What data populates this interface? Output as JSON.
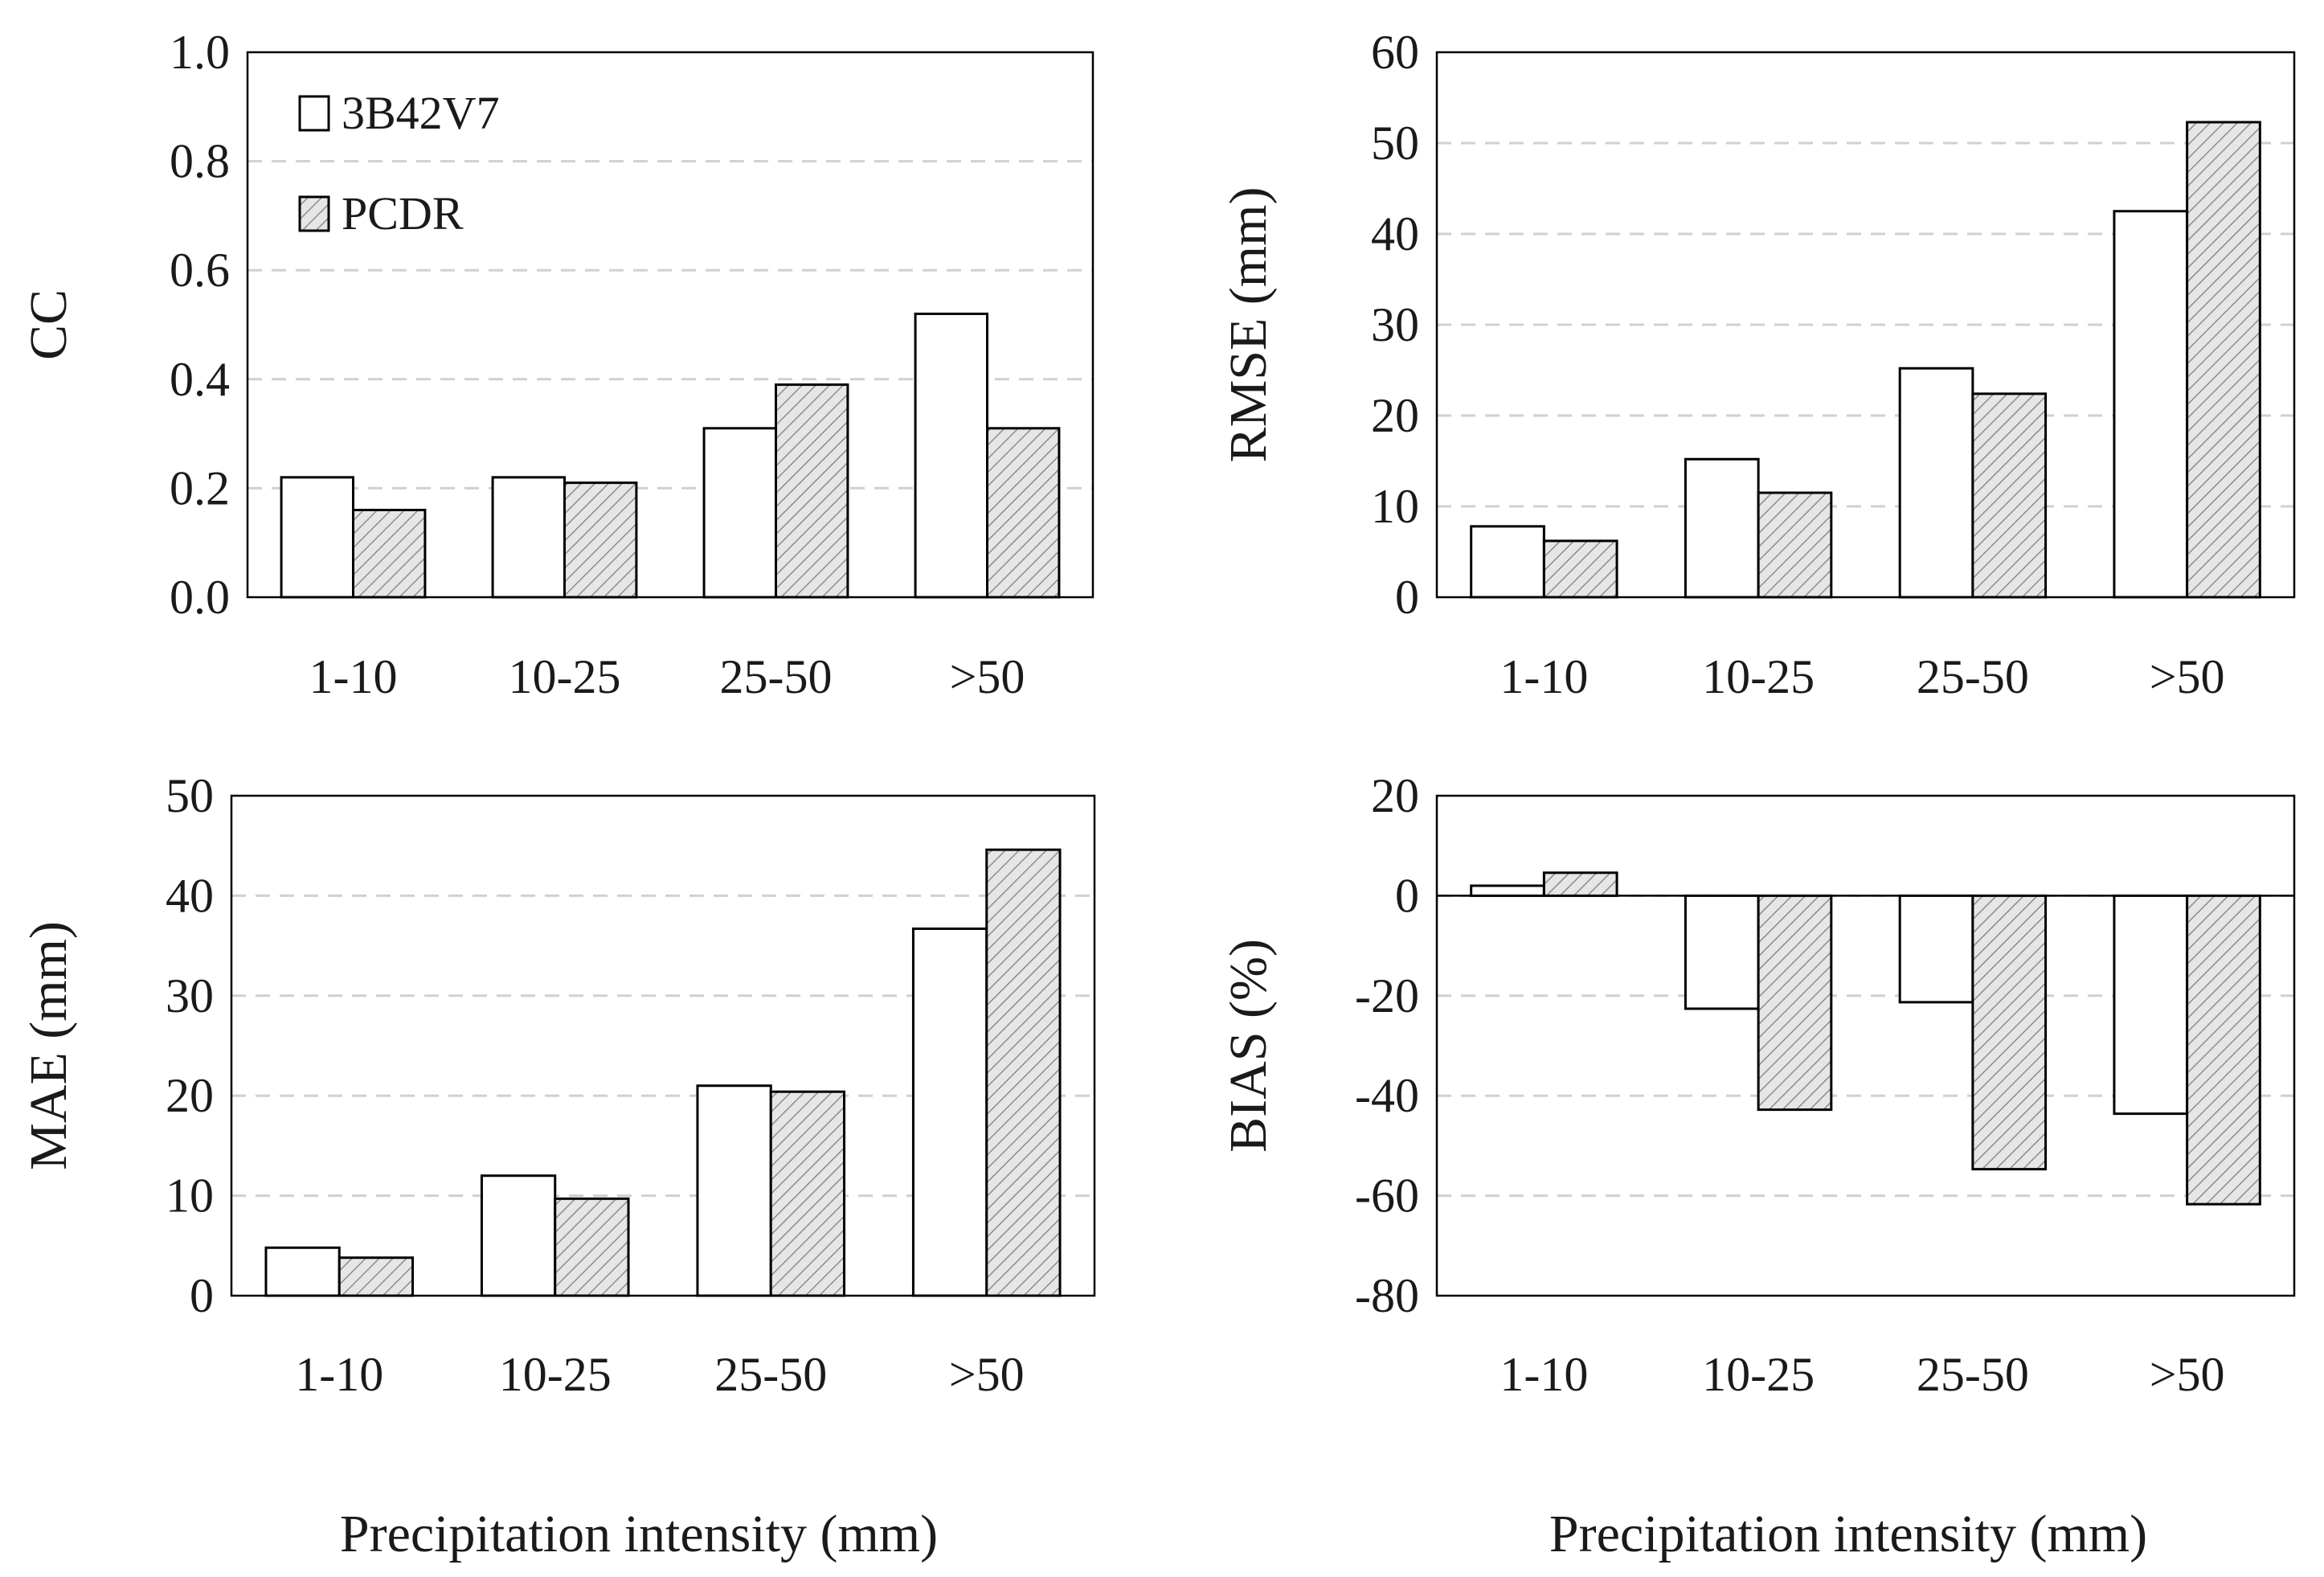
{
  "colors": {
    "bar_a_fill": "#ffffff",
    "bar_b_fill": "#e6e6e6",
    "hatch": "#8c8c8c",
    "axis": "#000000",
    "grid": "#d0d0d0"
  },
  "legend": {
    "series_a": "3B42V7",
    "series_b": "PCDR"
  },
  "x_titles": {
    "left": "Precipitation intensity (mm)",
    "right": "Precipitation intensity (mm)"
  },
  "chart_data": [
    {
      "type": "bar",
      "ylabel": "CC",
      "categories": [
        "1-10",
        "10-25",
        "25-50",
        ">50"
      ],
      "series": [
        {
          "name": "3B42V7",
          "values": [
            0.22,
            0.22,
            0.31,
            0.52
          ]
        },
        {
          "name": "PCDR",
          "values": [
            0.16,
            0.21,
            0.39,
            0.31
          ]
        }
      ],
      "ylim": [
        0,
        1.0
      ],
      "yticks": [
        "0.0",
        "0.2",
        "0.4",
        "0.6",
        "0.8",
        "1.0"
      ],
      "grid": true
    },
    {
      "type": "bar",
      "ylabel": "RMSE (mm)",
      "categories": [
        "1-10",
        "10-25",
        "25-50",
        ">50"
      ],
      "series": [
        {
          "name": "3B42V7",
          "values": [
            7.8,
            15.2,
            25.2,
            42.5
          ]
        },
        {
          "name": "PCDR",
          "values": [
            6.2,
            11.5,
            22.4,
            52.3
          ]
        }
      ],
      "ylim": [
        0,
        60
      ],
      "yticks": [
        "0",
        "10",
        "20",
        "30",
        "40",
        "50",
        "60"
      ],
      "grid": true
    },
    {
      "type": "bar",
      "ylabel": "MAE (mm)",
      "categories": [
        "1-10",
        "10-25",
        "25-50",
        ">50"
      ],
      "series": [
        {
          "name": "3B42V7",
          "values": [
            4.8,
            12.0,
            21.0,
            36.7
          ]
        },
        {
          "name": "PCDR",
          "values": [
            3.8,
            9.7,
            20.4,
            44.6
          ]
        }
      ],
      "ylim": [
        0,
        50
      ],
      "yticks": [
        "0",
        "10",
        "20",
        "30",
        "40",
        "50"
      ],
      "grid": true
    },
    {
      "type": "bar",
      "ylabel": "BIAS (%)",
      "categories": [
        "1-10",
        "10-25",
        "25-50",
        ">50"
      ],
      "series": [
        {
          "name": "3B42V7",
          "values": [
            2,
            -22.6,
            -21.3,
            -43.6
          ]
        },
        {
          "name": "PCDR",
          "values": [
            4.6,
            -42.8,
            -54.7,
            -61.7
          ]
        }
      ],
      "ylim": [
        -80,
        20
      ],
      "yticks": [
        "-80",
        "-60",
        "-40",
        "-20",
        "0",
        "20"
      ],
      "grid": true
    }
  ]
}
